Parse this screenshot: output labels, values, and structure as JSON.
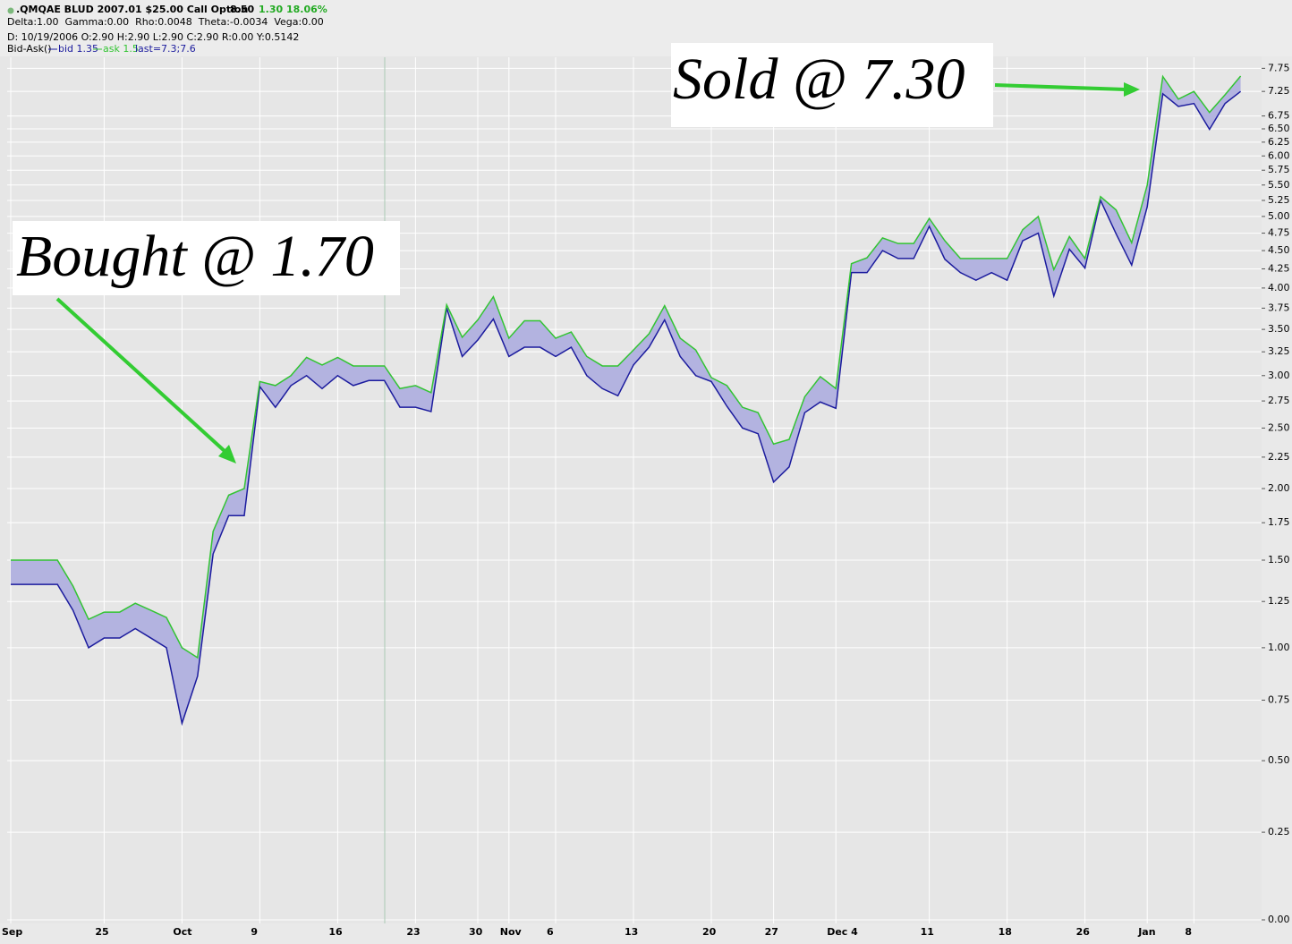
{
  "header": {
    "symbol": ".QMQAE BLUD 2007.01 $25.00 Call Option",
    "last": "8.50",
    "change": "1.30",
    "change_pct": "18.06%",
    "greeks": "Delta:1.00  Gamma:0.00  Rho:0.0048  Theta:-0.0034  Vega:0.00",
    "ohlc": "D: 10/19/2006 O:2.90 H:2.90 L:2.90 C:2.90 R:0.00 Y:0.5142",
    "indicator": "Bid-Ask()",
    "last_label": "last=7.3;7.6"
  },
  "chart_data": {
    "type": "band",
    "yscale": "log1p",
    "grid": true,
    "annotations": [
      "Bought @ 1.70",
      "Sold @ 7.30"
    ],
    "categories": [
      "Sep",
      null,
      null,
      null,
      null,
      null,
      "25",
      null,
      null,
      null,
      null,
      "Oct",
      null,
      null,
      null,
      null,
      "9",
      null,
      null,
      null,
      null,
      "16",
      null,
      null,
      null,
      null,
      "23",
      null,
      null,
      null,
      "30",
      null,
      "Nov",
      null,
      null,
      "6",
      null,
      null,
      null,
      null,
      "13",
      null,
      null,
      null,
      null,
      "20",
      null,
      null,
      null,
      "27",
      null,
      null,
      null,
      "Dec 4",
      null,
      null,
      null,
      null,
      null,
      "11",
      null,
      null,
      null,
      null,
      "18",
      null,
      null,
      null,
      null,
      "26",
      null,
      null,
      null,
      "Jan",
      null,
      null,
      "8",
      null,
      null,
      null
    ],
    "series": [
      {
        "name": "bid 1.35",
        "color": "#1c1c9e",
        "values": [
          1.35,
          1.35,
          1.35,
          1.35,
          1.2,
          1.0,
          1.05,
          1.05,
          1.1,
          1.05,
          1.0,
          0.65,
          0.86,
          1.54,
          1.8,
          1.8,
          2.89,
          2.69,
          2.9,
          3.0,
          2.87,
          3.0,
          2.9,
          2.95,
          2.95,
          2.69,
          2.69,
          2.65,
          3.75,
          3.2,
          3.38,
          3.62,
          3.2,
          3.3,
          3.3,
          3.2,
          3.3,
          3.0,
          2.87,
          2.8,
          3.11,
          3.3,
          3.61,
          3.2,
          3.0,
          2.94,
          2.7,
          2.5,
          2.45,
          2.05,
          2.17,
          2.64,
          2.74,
          2.68,
          4.2,
          4.2,
          4.5,
          4.39,
          4.39,
          4.85,
          4.38,
          4.2,
          4.1,
          4.2,
          4.1,
          4.64,
          4.75,
          3.9,
          4.52,
          4.26,
          5.25,
          4.74,
          4.3,
          5.15,
          7.2,
          6.94,
          7.0,
          6.49,
          7.0,
          7.25
        ]
      },
      {
        "name": "ask 1.5",
        "color": "#33c433",
        "values": [
          1.5,
          1.5,
          1.5,
          1.5,
          1.34,
          1.15,
          1.19,
          1.19,
          1.24,
          1.2,
          1.16,
          1.0,
          0.95,
          1.69,
          1.95,
          2.0,
          2.94,
          2.9,
          3.0,
          3.19,
          3.11,
          3.19,
          3.1,
          3.1,
          3.1,
          2.87,
          2.9,
          2.83,
          3.79,
          3.41,
          3.61,
          3.89,
          3.4,
          3.6,
          3.6,
          3.4,
          3.47,
          3.2,
          3.1,
          3.1,
          3.27,
          3.45,
          3.78,
          3.4,
          3.27,
          2.98,
          2.9,
          2.69,
          2.64,
          2.36,
          2.4,
          2.79,
          2.99,
          2.87,
          4.32,
          4.4,
          4.68,
          4.6,
          4.6,
          4.97,
          4.64,
          4.39,
          4.39,
          4.39,
          4.39,
          4.8,
          5.0,
          4.24,
          4.7,
          4.39,
          5.31,
          5.1,
          4.61,
          5.5,
          7.57,
          7.09,
          7.25,
          6.82,
          7.18,
          7.58
        ]
      }
    ],
    "band_color": "#b3b3e0",
    "ylim": [
      0,
      8
    ],
    "yticks": [
      {
        "value": 0,
        "label": "0.00"
      },
      {
        "value": 0.25,
        "label": "0.25"
      },
      {
        "value": 0.5,
        "label": "0.50"
      },
      {
        "value": 0.75,
        "label": "0.75"
      },
      {
        "value": 1,
        "label": "1.00"
      },
      {
        "value": 1.25,
        "label": "1.25"
      },
      {
        "value": 1.5,
        "label": "1.50"
      },
      {
        "value": 1.75,
        "label": "1.75"
      },
      {
        "value": 2,
        "label": "2.00"
      },
      {
        "value": 2.25,
        "label": "2.25"
      },
      {
        "value": 2.5,
        "label": "2.50"
      },
      {
        "value": 2.75,
        "label": "2.75"
      },
      {
        "value": 3,
        "label": "3.00"
      },
      {
        "value": 3.25,
        "label": "3.25"
      },
      {
        "value": 3.5,
        "label": "3.50"
      },
      {
        "value": 3.75,
        "label": "3.75"
      },
      {
        "value": 4,
        "label": "4.00"
      },
      {
        "value": 4.25,
        "label": "4.25"
      },
      {
        "value": 4.5,
        "label": "4.50"
      },
      {
        "value": 4.75,
        "label": "4.75"
      },
      {
        "value": 5,
        "label": "5.00"
      },
      {
        "value": 5.25,
        "label": "5.25"
      },
      {
        "value": 5.5,
        "label": "5.50"
      },
      {
        "value": 5.75,
        "label": "5.75"
      },
      {
        "value": 6,
        "label": "6.00"
      },
      {
        "value": 6.25,
        "label": "6.25"
      },
      {
        "value": 6.5,
        "label": "6.50"
      },
      {
        "value": 6.75,
        "label": "6.75"
      },
      {
        "value": 7.25,
        "label": "7.25"
      },
      {
        "value": 7.75,
        "label": "7.75"
      }
    ]
  }
}
